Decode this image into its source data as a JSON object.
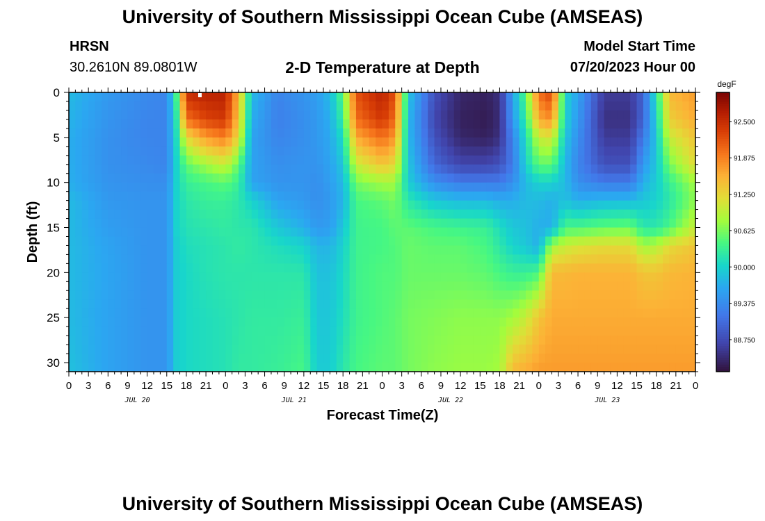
{
  "header": {
    "title": "University of Southern Mississippi Ocean Cube (AMSEAS)",
    "station": "HRSN",
    "coords": "30.2610N  89.0801W",
    "plot_title": "2-D Temperature at Depth",
    "model_label": "Model Start Time",
    "model_time": "07/20/2023 Hour 00"
  },
  "footer": {
    "title": "University of Southern Mississippi Ocean Cube (AMSEAS)"
  },
  "chart_data": {
    "type": "heatmap",
    "title": "2-D Temperature at Depth",
    "xlabel": "Forecast Time(Z)",
    "ylabel": "Depth (ft)",
    "x_ticks": [
      "0",
      "3",
      "6",
      "9",
      "12",
      "15",
      "18",
      "21",
      "0",
      "3",
      "6",
      "9",
      "12",
      "15",
      "18",
      "21",
      "0",
      "3",
      "6",
      "9",
      "12",
      "15",
      "18",
      "21",
      "0",
      "3",
      "6",
      "9",
      "12",
      "15",
      "18",
      "21",
      "0"
    ],
    "date_labels": [
      "JUL 20",
      "JUL 21",
      "JUL 22",
      "JUL 23"
    ],
    "y_ticks": [
      0,
      5,
      10,
      15,
      20,
      25,
      30
    ],
    "ylim": [
      0,
      31
    ],
    "xlim_hours": [
      0,
      96
    ],
    "colorbar": {
      "unit": "degF",
      "ticks": [
        "92.500",
        "91.875",
        "91.250",
        "90.625",
        "90.000",
        "89.375",
        "88.750"
      ],
      "range": [
        88.2,
        93.0
      ]
    },
    "x_hours": [
      0,
      6,
      12,
      15,
      16.5,
      18,
      21,
      24,
      26,
      28,
      32,
      36,
      38,
      40,
      42,
      44,
      48,
      50,
      52,
      56,
      60,
      64,
      66,
      68,
      70,
      72,
      74,
      76,
      78,
      82,
      86,
      88,
      90,
      92,
      96
    ],
    "y_depths": [
      0,
      3,
      5,
      8,
      10,
      12,
      15,
      17,
      20,
      25,
      31
    ],
    "temps": [
      [
        89.8,
        89.75,
        89.7,
        89.7,
        89.7,
        89.8,
        89.8,
        89.8,
        89.8,
        89.8,
        89.85
      ],
      [
        89.5,
        89.45,
        89.42,
        89.42,
        89.45,
        89.5,
        89.55,
        89.6,
        89.62,
        89.6,
        89.6
      ],
      [
        89.35,
        89.3,
        89.3,
        89.35,
        89.4,
        89.45,
        89.45,
        89.45,
        89.45,
        89.45,
        89.45
      ],
      [
        89.3,
        89.3,
        89.3,
        89.3,
        89.4,
        89.45,
        89.45,
        89.45,
        89.45,
        89.45,
        89.45
      ],
      [
        90.4,
        90.2,
        90.1,
        90.0,
        90.0,
        90.0,
        90.0,
        89.95,
        89.95,
        89.95,
        89.95
      ],
      [
        92.5,
        92.0,
        91.2,
        90.5,
        90.3,
        90.2,
        90.15,
        90.1,
        90.05,
        90.05,
        90.05
      ],
      [
        92.6,
        92.3,
        91.7,
        90.8,
        90.4,
        90.3,
        90.2,
        90.15,
        90.15,
        90.1,
        90.1
      ],
      [
        92.6,
        92.4,
        91.9,
        91.0,
        90.5,
        90.3,
        90.25,
        90.2,
        90.2,
        90.15,
        90.15
      ],
      [
        91.5,
        91.4,
        91.2,
        90.5,
        90.3,
        90.2,
        90.2,
        90.25,
        90.2,
        90.2,
        90.25
      ],
      [
        89.8,
        89.7,
        89.6,
        89.6,
        89.6,
        90.0,
        90.2,
        90.2,
        90.2,
        90.25,
        90.25
      ],
      [
        89.3,
        89.25,
        89.3,
        89.4,
        89.45,
        89.6,
        89.9,
        90.1,
        90.2,
        90.25,
        90.3
      ],
      [
        89.45,
        89.4,
        89.4,
        89.45,
        89.45,
        89.5,
        89.7,
        90.0,
        90.2,
        90.3,
        90.4
      ],
      [
        89.55,
        89.5,
        89.5,
        89.45,
        89.4,
        89.4,
        89.5,
        89.75,
        89.85,
        89.9,
        89.95
      ],
      [
        89.8,
        89.7,
        89.65,
        89.6,
        89.55,
        89.5,
        89.55,
        89.75,
        89.85,
        89.9,
        89.95
      ],
      [
        90.5,
        90.3,
        90.1,
        89.9,
        89.8,
        89.75,
        89.9,
        90.0,
        90.05,
        90.1,
        90.2
      ],
      [
        92.2,
        92.0,
        91.6,
        91.0,
        90.6,
        90.4,
        90.35,
        90.35,
        90.35,
        90.35,
        90.4
      ],
      [
        92.6,
        92.4,
        92.0,
        91.4,
        90.8,
        90.5,
        90.4,
        90.4,
        90.45,
        90.45,
        90.5
      ],
      [
        92.2,
        92.0,
        91.7,
        91.2,
        90.8,
        90.6,
        90.5,
        90.45,
        90.45,
        90.5,
        90.5
      ],
      [
        89.9,
        89.8,
        89.8,
        89.9,
        89.95,
        90.2,
        90.5,
        90.55,
        90.55,
        90.6,
        90.6
      ],
      [
        88.8,
        88.7,
        88.8,
        89.0,
        89.4,
        89.9,
        90.4,
        90.5,
        90.55,
        90.65,
        90.7
      ],
      [
        88.4,
        88.35,
        88.4,
        88.7,
        89.2,
        89.8,
        90.35,
        90.5,
        90.55,
        90.7,
        90.75
      ],
      [
        88.35,
        88.3,
        88.35,
        88.7,
        89.2,
        89.8,
        90.3,
        90.4,
        90.5,
        90.7,
        90.75
      ],
      [
        88.5,
        88.45,
        88.5,
        88.8,
        89.2,
        89.7,
        90.1,
        90.2,
        90.4,
        90.7,
        90.8
      ],
      [
        89.6,
        89.5,
        89.3,
        89.2,
        89.4,
        89.7,
        89.9,
        90.0,
        90.3,
        90.8,
        91.5
      ],
      [
        90.5,
        90.3,
        90.1,
        90.0,
        89.8,
        89.8,
        89.85,
        89.9,
        90.3,
        91.0,
        91.6
      ],
      [
        92.0,
        91.6,
        91.0,
        90.5,
        90.0,
        89.8,
        89.7,
        89.7,
        90.4,
        91.4,
        91.7
      ],
      [
        92.3,
        91.8,
        91.1,
        90.5,
        90.0,
        89.7,
        89.7,
        90.8,
        91.5,
        91.6,
        91.7
      ],
      [
        90.0,
        90.0,
        89.9,
        89.8,
        89.8,
        89.85,
        90.4,
        91.0,
        91.5,
        91.6,
        91.7
      ],
      [
        89.6,
        89.5,
        89.4,
        89.3,
        89.4,
        89.7,
        90.4,
        91.1,
        91.55,
        91.6,
        91.7
      ],
      [
        88.6,
        88.5,
        88.6,
        88.8,
        89.2,
        89.8,
        90.5,
        91.2,
        91.55,
        91.6,
        91.7
      ],
      [
        88.6,
        88.5,
        88.6,
        88.8,
        89.2,
        89.8,
        90.55,
        91.2,
        91.55,
        91.6,
        91.7
      ],
      [
        89.0,
        89.0,
        89.2,
        89.5,
        89.7,
        89.9,
        90.2,
        90.8,
        91.4,
        91.6,
        91.7
      ],
      [
        90.2,
        90.0,
        89.9,
        89.9,
        89.95,
        90.0,
        90.2,
        90.9,
        91.4,
        91.6,
        91.7
      ],
      [
        91.5,
        91.3,
        91.0,
        90.6,
        90.3,
        90.2,
        90.4,
        91.2,
        91.5,
        91.6,
        91.7
      ],
      [
        91.7,
        91.6,
        91.4,
        91.2,
        90.8,
        90.7,
        91.0,
        91.4,
        91.55,
        91.6,
        91.7
      ]
    ]
  }
}
